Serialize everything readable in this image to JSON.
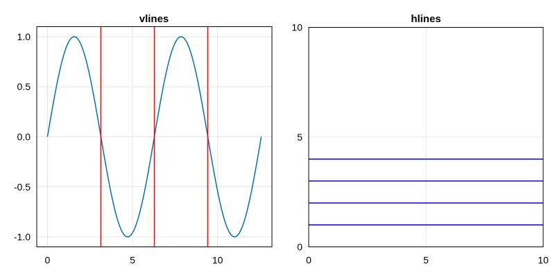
{
  "chart_data": [
    {
      "type": "line",
      "title": "vlines",
      "xlabel": "",
      "ylabel": "",
      "xlim": [
        -0.6283,
        13.1947
      ],
      "ylim": [
        -1.1,
        1.1
      ],
      "xticks": [
        0,
        5,
        10
      ],
      "xtick_labels": [
        "0",
        "5",
        "10"
      ],
      "yticks": [
        1.0,
        0.5,
        0.0,
        -0.5,
        -1.0
      ],
      "ytick_labels": [
        "1.0",
        "0.5",
        "0.0",
        "-0.5",
        "-1.0"
      ],
      "grid": true,
      "series": [
        {
          "function": "sin",
          "x_range": [
            0,
            12.566
          ],
          "color": "#0072b2"
        }
      ],
      "vlines": {
        "x": [
          3.1416,
          6.2832,
          9.4248
        ],
        "color": "#ff0000"
      }
    },
    {
      "type": "line",
      "title": "hlines",
      "xlabel": "",
      "ylabel": "",
      "xlim": [
        0,
        10
      ],
      "ylim": [
        0,
        10
      ],
      "xticks": [
        0,
        5,
        10
      ],
      "xtick_labels": [
        "0",
        "5",
        "10"
      ],
      "yticks": [
        0,
        5,
        10
      ],
      "ytick_labels": [
        "0",
        "5",
        "10"
      ],
      "grid": true,
      "hlines": {
        "y": [
          1,
          2,
          3,
          4
        ],
        "color": "#0000ff"
      }
    }
  ]
}
